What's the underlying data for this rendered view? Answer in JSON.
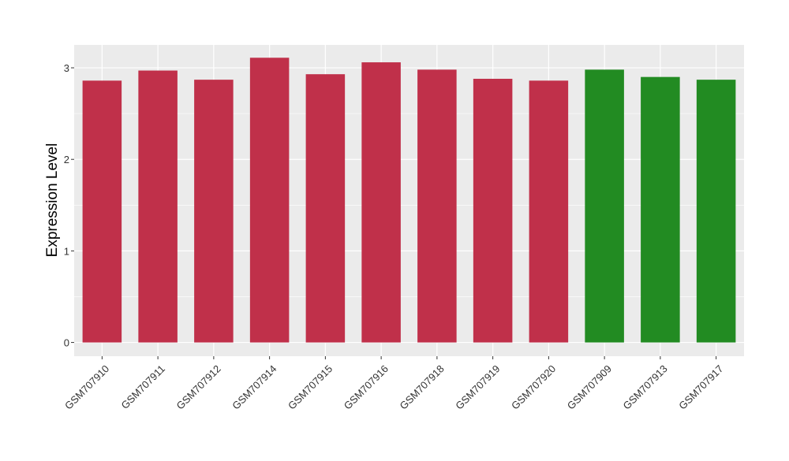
{
  "chart_data": {
    "type": "bar",
    "title": "",
    "xlabel": "",
    "ylabel": "Expression Level",
    "ylim": [
      -0.15,
      3.25
    ],
    "yticks": [
      0,
      1,
      2,
      3
    ],
    "grid": true,
    "legend": "none",
    "categories": [
      "GSM707910",
      "GSM707911",
      "GSM707912",
      "GSM707914",
      "GSM707915",
      "GSM707916",
      "GSM707918",
      "GSM707919",
      "GSM707920",
      "GSM707909",
      "GSM707913",
      "GSM707917"
    ],
    "values": [
      2.86,
      2.97,
      2.87,
      3.11,
      2.93,
      3.06,
      2.98,
      2.88,
      2.86,
      2.98,
      2.9,
      2.87
    ],
    "bar_colors": [
      "#C0304A",
      "#C0304A",
      "#C0304A",
      "#C0304A",
      "#C0304A",
      "#C0304A",
      "#C0304A",
      "#C0304A",
      "#C0304A",
      "#228B22",
      "#228B22",
      "#228B22"
    ]
  },
  "colors": {
    "panel_background": "#EBEBEB",
    "gridline": "#FFFFFF",
    "axis_text": "#333333"
  }
}
